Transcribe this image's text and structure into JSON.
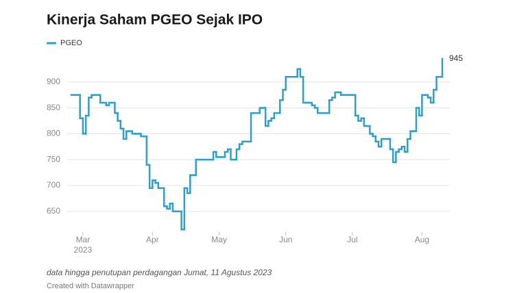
{
  "chart_data": {
    "type": "line",
    "title": "Kinerja Saham PGEO Sejak IPO",
    "categories": [
      null,
      null,
      null,
      null,
      "Mar",
      null,
      null,
      null,
      null,
      null,
      null,
      null,
      null,
      null,
      null,
      null,
      null,
      null,
      null,
      null,
      null,
      null,
      null,
      null,
      null,
      null,
      null,
      null,
      "Apr",
      null,
      null,
      null,
      null,
      null,
      null,
      null,
      null,
      null,
      null,
      null,
      null,
      null,
      null,
      null,
      null,
      null,
      null,
      null,
      null,
      null,
      null,
      "May",
      null,
      null,
      null,
      null,
      null,
      null,
      null,
      null,
      null,
      null,
      null,
      null,
      null,
      null,
      null,
      null,
      null,
      null,
      null,
      null,
      null,
      null,
      "Jun",
      null,
      null,
      null,
      null,
      null,
      null,
      null,
      null,
      null,
      null,
      null,
      null,
      null,
      null,
      null,
      null,
      null,
      null,
      null,
      null,
      null,
      null,
      "Jul",
      null,
      null,
      null,
      null,
      null,
      null,
      null,
      null,
      null,
      null,
      null,
      null,
      null,
      null,
      null,
      null,
      null,
      null,
      null,
      null,
      null,
      null,
      null,
      "Aug",
      null,
      null,
      null,
      null,
      null,
      null,
      null
    ],
    "x_year": "2023",
    "series": [
      {
        "name": "PGEO",
        "color": "#2a9fd0",
        "values": [
          875,
          875,
          875,
          830,
          800,
          835,
          870,
          875,
          875,
          875,
          860,
          860,
          855,
          860,
          860,
          840,
          825,
          810,
          790,
          805,
          805,
          800,
          800,
          800,
          795,
          795,
          740,
          695,
          710,
          705,
          695,
          695,
          660,
          655,
          665,
          650,
          650,
          650,
          615,
          695,
          685,
          720,
          720,
          750,
          750,
          750,
          750,
          750,
          750,
          765,
          755,
          755,
          755,
          765,
          770,
          750,
          750,
          770,
          780,
          785,
          785,
          785,
          840,
          840,
          840,
          850,
          850,
          815,
          825,
          830,
          840,
          840,
          865,
          885,
          910,
          910,
          910,
          910,
          925,
          910,
          860,
          860,
          860,
          855,
          850,
          840,
          840,
          840,
          840,
          865,
          870,
          880,
          880,
          875,
          875,
          875,
          875,
          875,
          835,
          825,
          830,
          815,
          815,
          800,
          795,
          785,
          775,
          790,
          790,
          790,
          770,
          745,
          765,
          770,
          775,
          765,
          790,
          805,
          805,
          850,
          835,
          875,
          875,
          870,
          860,
          885,
          910,
          910,
          945
        ]
      }
    ],
    "ylim": [
      610,
      950
    ],
    "yticks": [
      650,
      700,
      750,
      800,
      850,
      900
    ],
    "grid": true,
    "step": true,
    "label_last": true,
    "note": "data hingga penutupan perdagangan Jumat, 11 Agustus 2023",
    "credit": "Created with Datawrapper"
  }
}
